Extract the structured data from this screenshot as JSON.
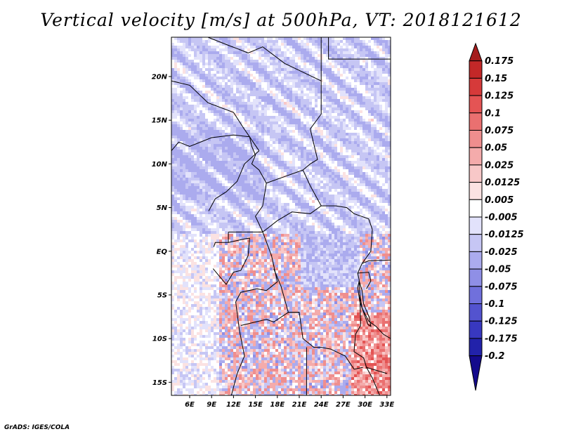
{
  "title": "Vertical velocity [m/s] at 500hPa, VT: 2018121612",
  "credit": "GrADS: IGES/COLA",
  "map": {
    "lon_range": [
      3.5,
      33.5
    ],
    "lat_range": [
      -16.5,
      24.5
    ],
    "lat_ticks": [
      {
        "value": 20,
        "label": "20N"
      },
      {
        "value": 15,
        "label": "15N"
      },
      {
        "value": 10,
        "label": "10N"
      },
      {
        "value": 5,
        "label": "5N"
      },
      {
        "value": 0,
        "label": "EQ"
      },
      {
        "value": -5,
        "label": "5S"
      },
      {
        "value": -10,
        "label": "10S"
      },
      {
        "value": -15,
        "label": "15S"
      }
    ],
    "lon_ticks": [
      {
        "value": 6,
        "label": "6E"
      },
      {
        "value": 9,
        "label": "9E"
      },
      {
        "value": 12,
        "label": "12E"
      },
      {
        "value": 15,
        "label": "15E"
      },
      {
        "value": 18,
        "label": "18E"
      },
      {
        "value": 21,
        "label": "21E"
      },
      {
        "value": 24,
        "label": "24E"
      },
      {
        "value": 27,
        "label": "27E"
      },
      {
        "value": 30,
        "label": "30E"
      },
      {
        "value": 33,
        "label": "33E"
      }
    ]
  },
  "colorbar": {
    "labels": [
      "0.175",
      "0.15",
      "0.125",
      "0.1",
      "0.075",
      "0.05",
      "0.025",
      "0.0125",
      "0.005",
      "-0.005",
      "-0.0125",
      "-0.025",
      "-0.05",
      "-0.075",
      "-0.1",
      "-0.125",
      "-0.175",
      "-0.2"
    ],
    "colors": [
      "#a51c1c",
      "#c32828",
      "#d63a3a",
      "#e45454",
      "#ea7070",
      "#ef8e8e",
      "#f4abab",
      "#f8c8c8",
      "#fbe2e2",
      "#ffffff",
      "#e2e2fb",
      "#c6c6f4",
      "#ababee",
      "#8f8fe6",
      "#7070dc",
      "#5353cf",
      "#3838c0",
      "#2222aa",
      "#140a8c"
    ]
  }
}
